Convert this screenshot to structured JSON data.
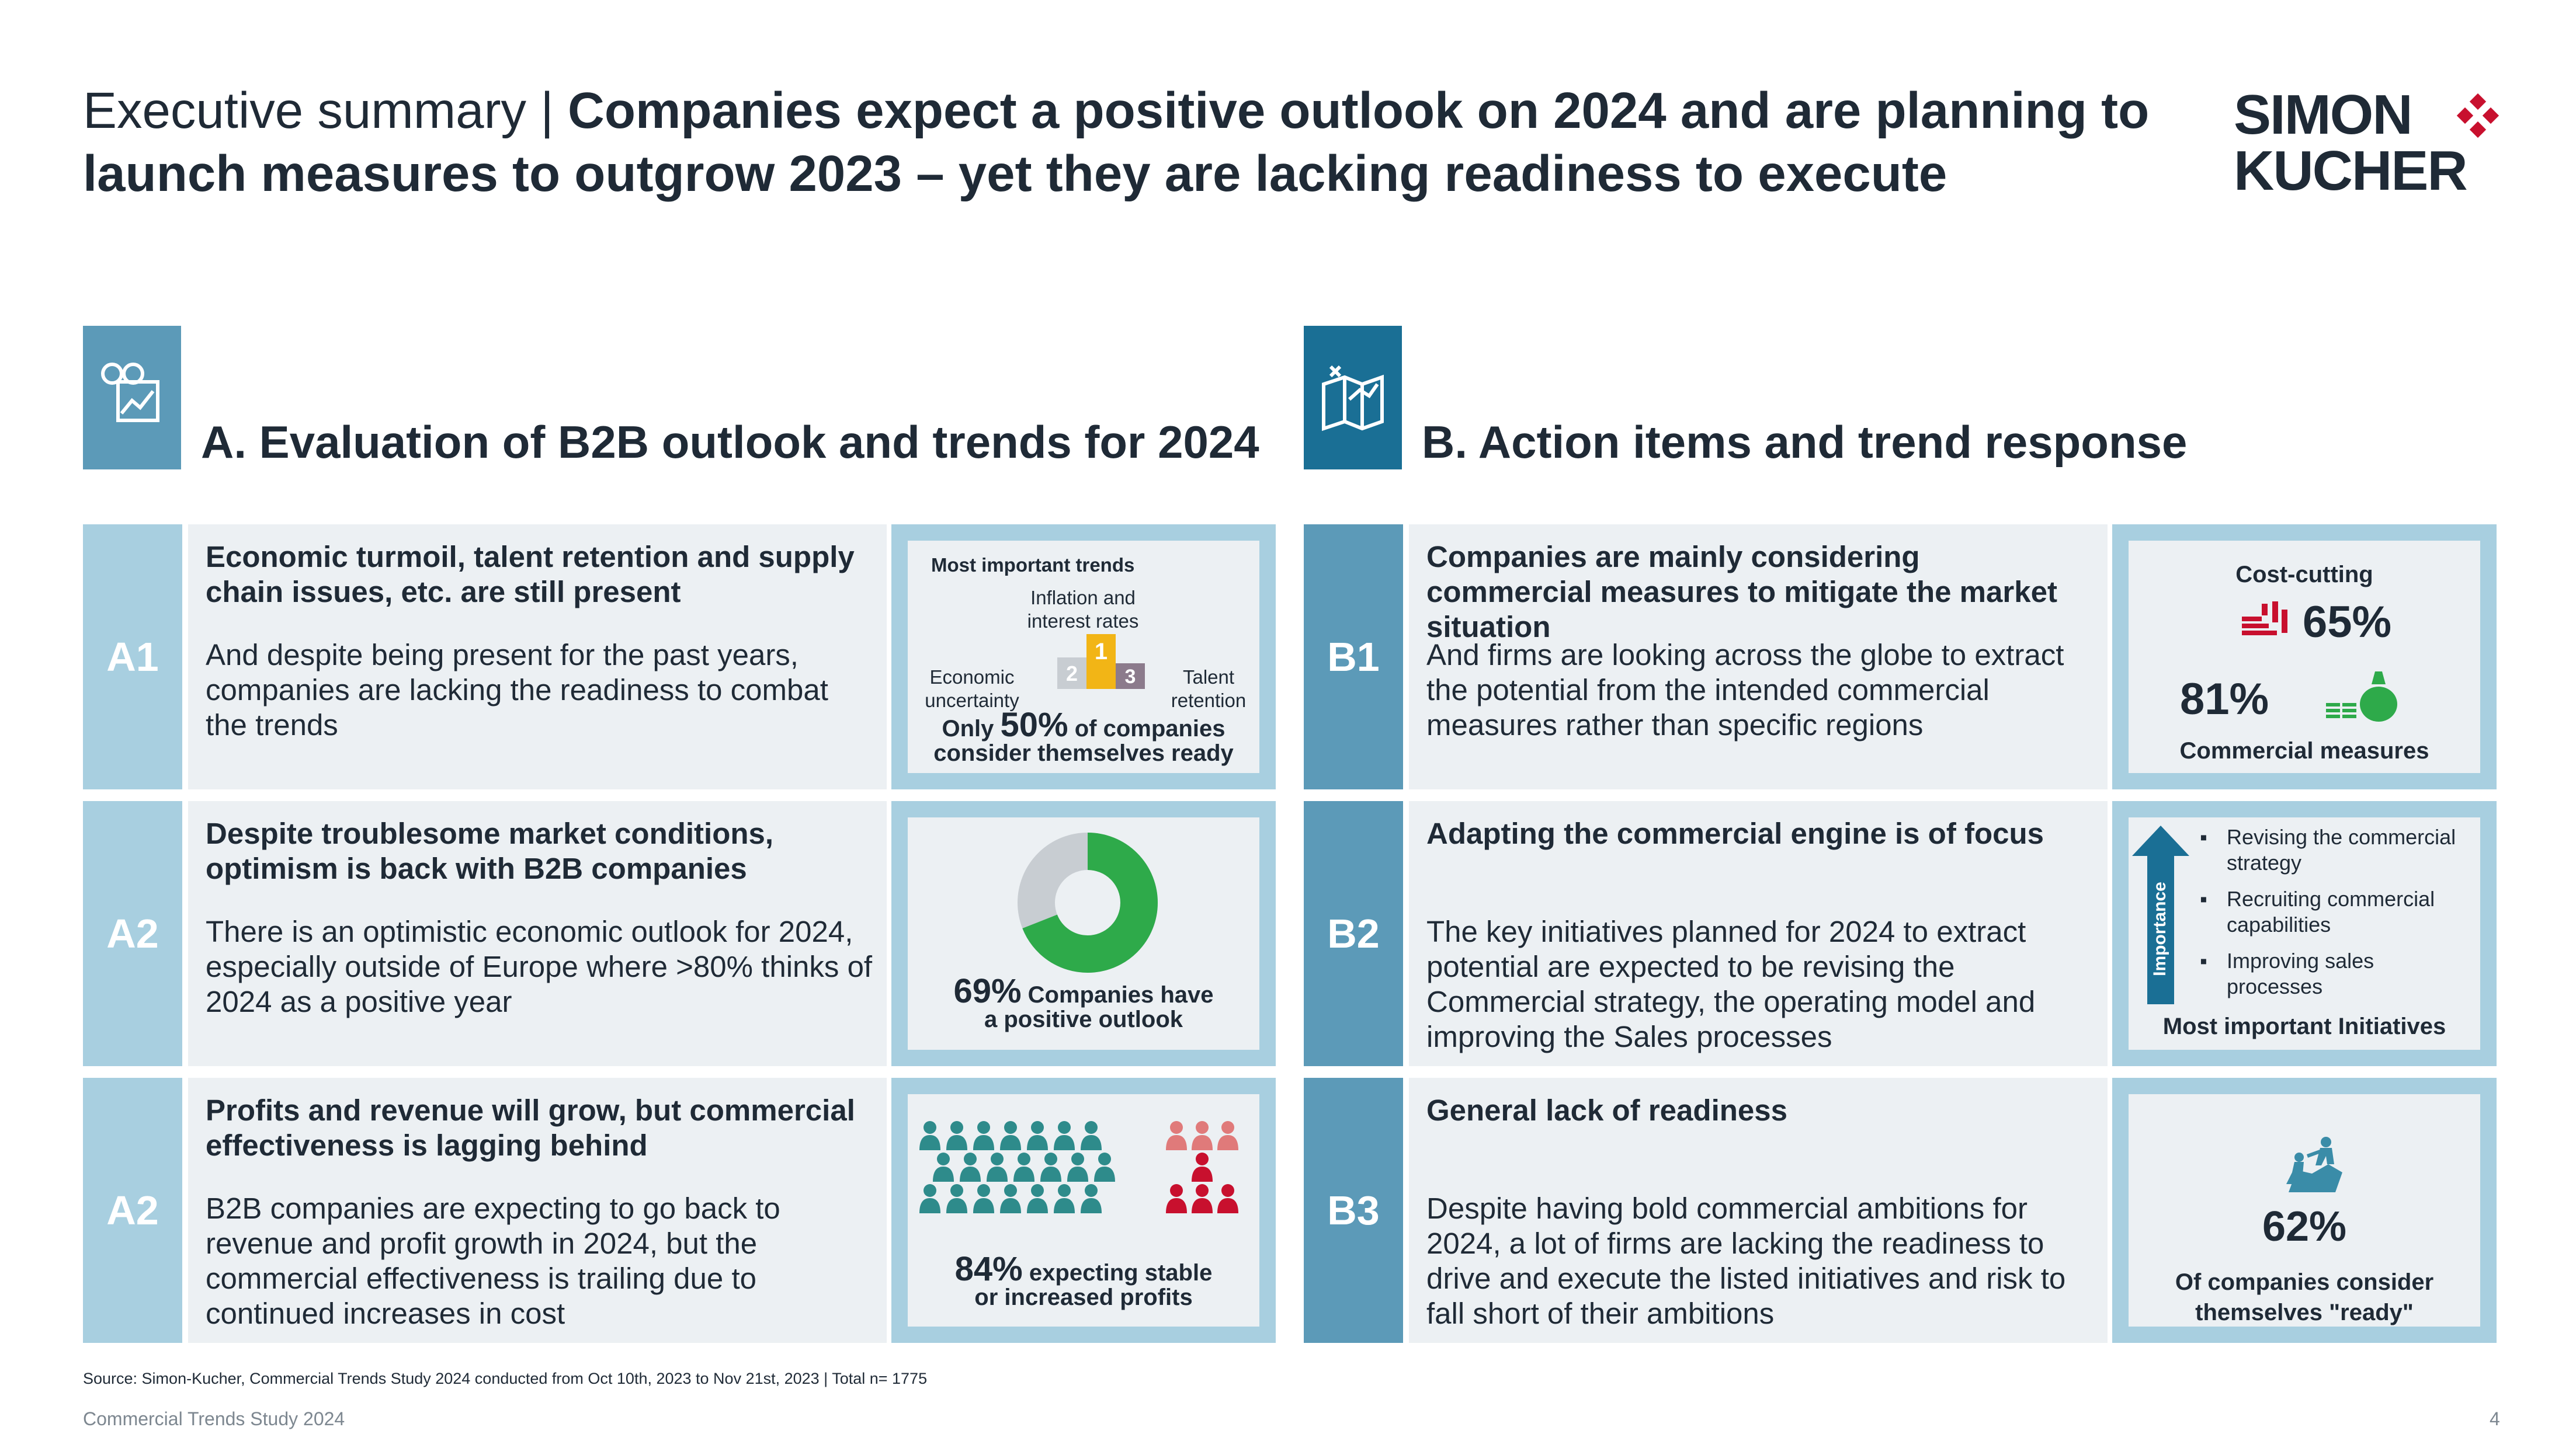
{
  "header": {
    "title_light": "Executive summary | ",
    "title_bold_line1": "Companies expect a positive outlook on 2024 and are planning to",
    "title_bold_line2": "launch measures to outgrow 2023 – yet they are lacking readiness to execute"
  },
  "logo": {
    "line1": "SIMON",
    "line2": "KUCHER",
    "mark_color": "#c8102e"
  },
  "colors": {
    "light_blue": "#a8cfe0",
    "mid_blue": "#5c9ab8",
    "panel": "#ecf0f3",
    "teal": "#2e8b8b",
    "green": "#2eaa4a",
    "red": "#c8102e",
    "pink": "#e07a7a",
    "gold": "#f2b516",
    "gray": "#c8cdd2"
  },
  "section_a": {
    "icon": "binoculars-chart-icon",
    "title": "A. Evaluation of B2B outlook and trends for 2024"
  },
  "section_b": {
    "icon": "strategy-map-icon",
    "title": "B. Action items and trend response"
  },
  "rows_a": [
    {
      "label": "A1",
      "head": "Economic turmoil, talent retention and supply chain issues, etc. are still present",
      "body": "And despite being present for the past years, companies are lacking the readiness to combat the trends",
      "visual": {
        "heading": "Most important trends",
        "first": "Inflation and interest rates",
        "second": "Economic uncertainty",
        "third": "Talent retention",
        "rank1": "1",
        "rank2": "2",
        "rank3": "3",
        "stat_pre": "Only",
        "stat_value": "50%",
        "stat_post": "of companies",
        "stat_line2": "consider themselves ready"
      }
    },
    {
      "label": "A2",
      "head": "Despite troublesome market conditions, optimism is back with B2B companies",
      "body": "There is an optimistic economic outlook for 2024, especially outside of Europe where >80% thinks of 2024 as a positive year",
      "visual": {
        "donut_value": 69,
        "stat_value": "69%",
        "stat_post": "Companies have",
        "stat_line2": "a positive outlook"
      }
    },
    {
      "label": "A2",
      "head": "Profits and revenue will grow, but commercial effectiveness is lagging behind",
      "body": "B2B companies are expecting to go back to revenue and profit growth in 2024, but the commercial effectiveness is trailing due to continued increases in cost",
      "visual": {
        "icon": "people-group-icon",
        "stat_value": "84%",
        "stat_post": "expecting stable",
        "stat_line2": "or increased profits"
      }
    }
  ],
  "rows_b": [
    {
      "label": "B1",
      "head": "Companies are mainly considering commercial measures to mitigate the market situation",
      "body": "And firms are looking across the globe to extract the potential from the intended commercial measures rather than specific regions",
      "visual": {
        "cost_label": "Cost-cutting",
        "cost_value": "65%",
        "commercial_value": "81%",
        "commercial_label": "Commercial measures"
      }
    },
    {
      "label": "B2",
      "head": "Adapting the commercial engine is of focus",
      "body": "The key initiatives planned for 2024 to extract potential are expected to be revising the Commercial strategy, the operating model and improving the Sales processes",
      "visual": {
        "arrow_label": "Importance",
        "items": [
          "Revising the commercial strategy",
          "Recruiting commercial capabilities",
          "Improving sales processes"
        ],
        "footer": "Most important Initiatives"
      }
    },
    {
      "label": "B3",
      "head": "General lack of readiness",
      "body": "Despite having bold commercial ambitions for 2024, a lot of firms are lacking the readiness to drive and execute the listed initiatives and risk to fall short of their ambitions",
      "visual": {
        "icon": "climbing-help-icon",
        "stat_value": "62%",
        "stat_line1": "Of companies consider",
        "stat_line2": "themselves \"ready\""
      }
    }
  ],
  "footer": {
    "source": "Source: Simon-Kucher, Commercial Trends Study 2024 conducted from Oct 10th, 2023 to Nov 21st, 2023 | Total n= 1775",
    "left": "Commercial Trends Study 2024",
    "page": "4"
  }
}
